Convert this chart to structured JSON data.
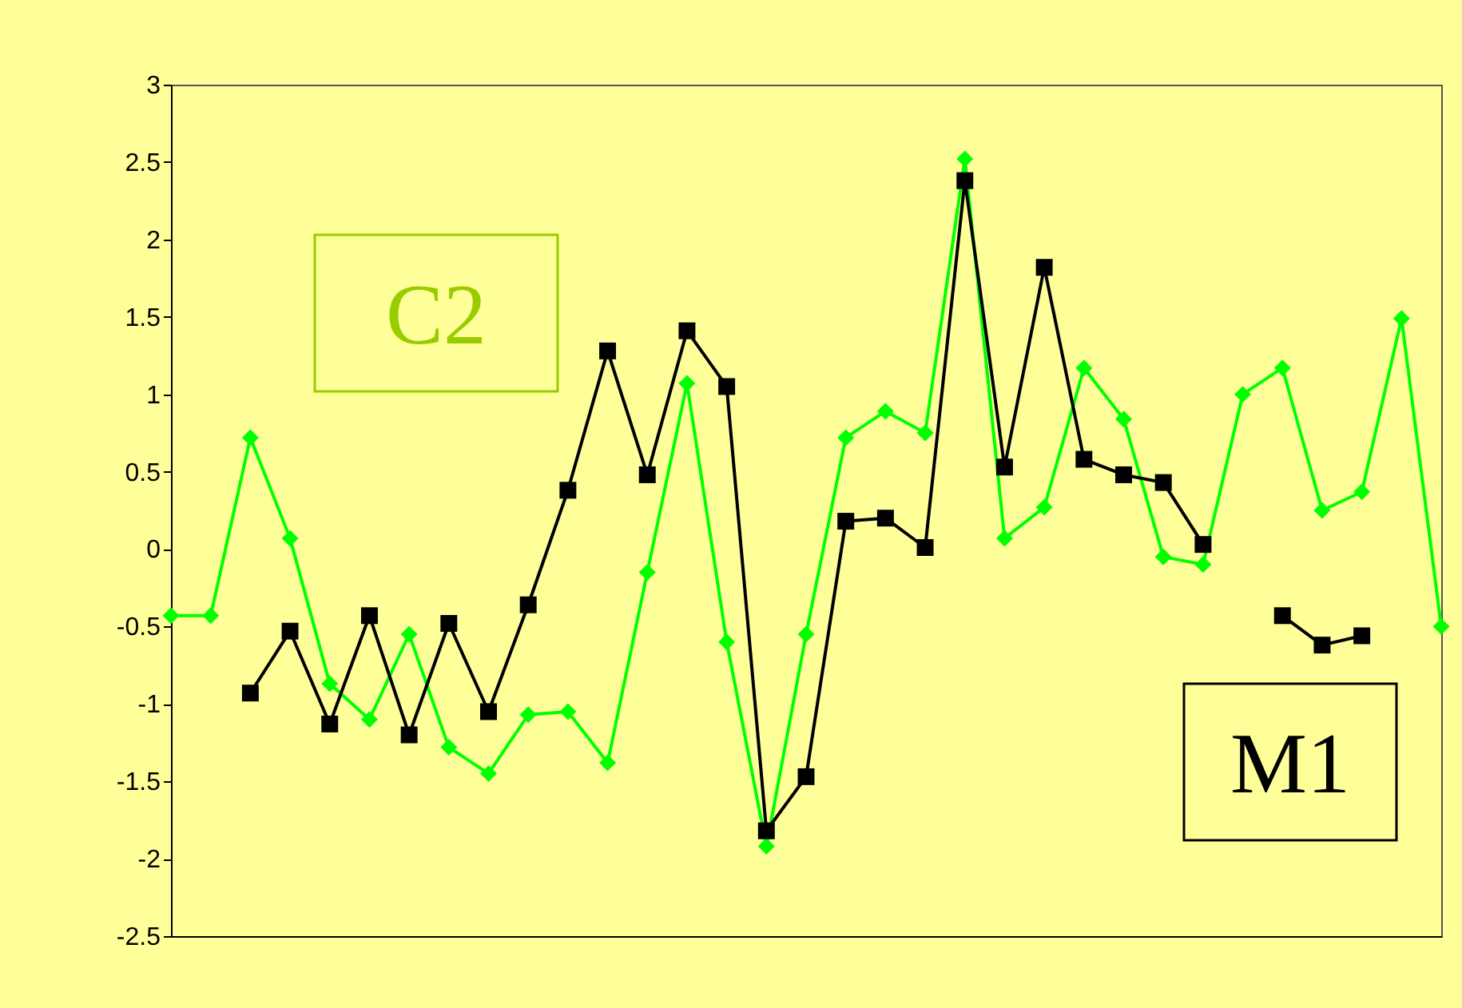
{
  "chart_data": {
    "type": "line",
    "categories": [
      null,
      null,
      null,
      null,
      null,
      null,
      null,
      null,
      null,
      null,
      null,
      null,
      null,
      null,
      null,
      null,
      null,
      null,
      null,
      null,
      null,
      null,
      null,
      null,
      null,
      null,
      null,
      null,
      null,
      null,
      null,
      null,
      null
    ],
    "series": [
      {
        "color": "#00ff00",
        "marker": "diamond",
        "values": [
          -0.43,
          -0.43,
          0.72,
          0.07,
          -0.87,
          -1.1,
          -0.55,
          -1.28,
          -1.45,
          -1.07,
          -1.05,
          -1.38,
          -0.15,
          1.07,
          -0.6,
          -1.92,
          -0.55,
          0.72,
          0.89,
          0.75,
          2.52,
          0.07,
          0.27,
          1.17,
          0.84,
          -0.05,
          -0.1,
          1.0,
          1.17,
          0.25,
          0.37,
          1.49,
          -0.5
        ]
      },
      {
        "color": "#000000",
        "marker": "square",
        "values": [
          null,
          null,
          -0.93,
          -0.53,
          -1.13,
          -0.43,
          -1.2,
          -0.48,
          -1.05,
          -0.36,
          0.38,
          1.28,
          0.48,
          1.41,
          1.05,
          -1.82,
          -1.47,
          0.18,
          0.2,
          0.01,
          2.38,
          0.53,
          1.82,
          0.58,
          0.48,
          0.43,
          0.03,
          null,
          -0.43,
          -0.62,
          -0.56,
          null,
          null
        ]
      }
    ],
    "annotations": [
      "C2",
      "M1"
    ],
    "ylim": [
      -2.5,
      3
    ],
    "yticks": [
      -2.5,
      -2,
      -1.5,
      -1,
      -0.5,
      0,
      0.5,
      1,
      1.5,
      2,
      2.5,
      3
    ],
    "grid": false,
    "line_style": "solid"
  }
}
